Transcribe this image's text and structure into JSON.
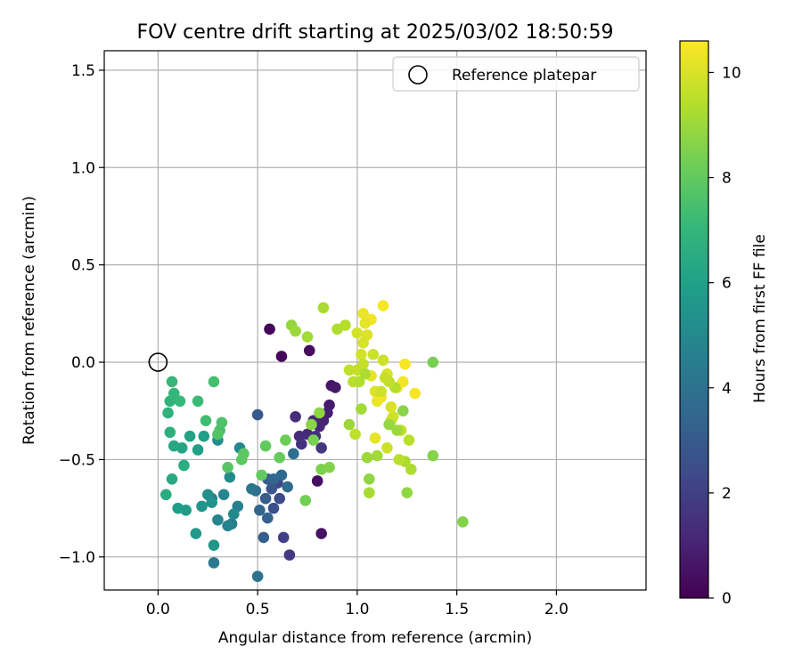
{
  "chart_data": {
    "type": "scatter",
    "title": "FOV centre drift starting at 2025/03/02 18:50:59",
    "xlabel": "Angular distance from reference (arcmin)",
    "ylabel": "Rotation from reference (arcmin)",
    "xlim": [
      -0.27,
      2.45
    ],
    "ylim": [
      -1.17,
      1.6
    ],
    "x_ticks": [
      0.0,
      0.5,
      1.0,
      1.5,
      2.0
    ],
    "x_tick_labels": [
      "0.0",
      "0.5",
      "1.0",
      "1.5",
      "2.0"
    ],
    "y_ticks": [
      -1.0,
      -0.5,
      0.0,
      0.5,
      1.0,
      1.5
    ],
    "y_tick_labels": [
      "−1.0",
      "−0.5",
      "0.0",
      "0.5",
      "1.0",
      "1.5"
    ],
    "grid": true,
    "legend": {
      "position": "top-right",
      "entries": [
        "Reference platepar"
      ]
    },
    "reference_point": {
      "x": 0.0,
      "y": 0.0
    },
    "colorbar": {
      "label": "Hours from first FF file",
      "colormap": "viridis",
      "range": [
        0,
        10.6
      ],
      "ticks": [
        0,
        2,
        4,
        6,
        8,
        10
      ],
      "tick_labels": [
        "0",
        "2",
        "4",
        "6",
        "8",
        "10"
      ]
    },
    "colormap_stops": [
      "#440154",
      "#482878",
      "#3e4a89",
      "#31688e",
      "#26828e",
      "#1f9e89",
      "#35b779",
      "#6ece58",
      "#b5de2b",
      "#fde725"
    ],
    "points": [
      [
        0.56,
        0.17,
        0.1
      ],
      [
        0.62,
        0.03,
        0.2
      ],
      [
        0.76,
        0.06,
        0.3
      ],
      [
        0.8,
        -0.61,
        0.4
      ],
      [
        0.82,
        -0.88,
        0.5
      ],
      [
        0.87,
        -0.12,
        0.6
      ],
      [
        0.89,
        -0.13,
        0.7
      ],
      [
        0.86,
        -0.22,
        0.8
      ],
      [
        0.85,
        -0.26,
        0.9
      ],
      [
        0.83,
        -0.3,
        1.0
      ],
      [
        0.81,
        -0.33,
        1.1
      ],
      [
        0.78,
        -0.3,
        1.2
      ],
      [
        0.75,
        -0.37,
        1.2
      ],
      [
        0.71,
        -0.38,
        1.3
      ],
      [
        0.69,
        -0.28,
        1.4
      ],
      [
        0.72,
        -0.42,
        1.5
      ],
      [
        0.79,
        -0.38,
        1.6
      ],
      [
        0.82,
        -0.44,
        1.7
      ],
      [
        0.66,
        -0.99,
        1.8
      ],
      [
        0.63,
        -0.9,
        2.0
      ],
      [
        0.6,
        -0.62,
        2.2
      ],
      [
        0.61,
        -0.7,
        2.4
      ],
      [
        0.58,
        -0.75,
        2.6
      ],
      [
        0.57,
        -0.65,
        2.8
      ],
      [
        0.55,
        -0.6,
        3.0
      ],
      [
        0.5,
        -0.27,
        3.0
      ],
      [
        0.54,
        -0.7,
        3.1
      ],
      [
        0.53,
        -0.9,
        3.2
      ],
      [
        0.55,
        -0.8,
        3.3
      ],
      [
        0.51,
        -0.76,
        3.4
      ],
      [
        0.58,
        -0.6,
        3.5
      ],
      [
        0.62,
        -0.58,
        3.6
      ],
      [
        0.65,
        -0.64,
        3.7
      ],
      [
        0.68,
        -0.47,
        3.8
      ],
      [
        0.49,
        -0.66,
        3.9
      ],
      [
        0.5,
        -1.1,
        4.0
      ],
      [
        0.47,
        -0.65,
        4.1
      ],
      [
        0.28,
        -1.03,
        4.3
      ],
      [
        0.27,
        -0.7,
        4.4
      ],
      [
        0.37,
        -0.83,
        4.5
      ],
      [
        0.4,
        -0.74,
        4.6
      ],
      [
        0.35,
        -0.84,
        4.7
      ],
      [
        0.3,
        -0.81,
        4.8
      ],
      [
        0.33,
        -0.68,
        4.9
      ],
      [
        0.38,
        -0.78,
        5.0
      ],
      [
        0.41,
        -0.44,
        5.0
      ],
      [
        0.36,
        -0.59,
        5.1
      ],
      [
        0.3,
        -0.4,
        5.2
      ],
      [
        0.25,
        -0.68,
        5.3
      ],
      [
        0.27,
        -0.72,
        5.4
      ],
      [
        0.22,
        -0.74,
        5.5
      ],
      [
        0.28,
        -0.94,
        5.6
      ],
      [
        0.19,
        -0.88,
        5.7
      ],
      [
        0.14,
        -0.76,
        5.8
      ],
      [
        0.1,
        -0.75,
        5.9
      ],
      [
        0.2,
        -0.45,
        6.0
      ],
      [
        0.23,
        -0.38,
        6.0
      ],
      [
        0.16,
        -0.38,
        6.1
      ],
      [
        0.12,
        -0.44,
        6.2
      ],
      [
        0.08,
        -0.43,
        6.3
      ],
      [
        0.07,
        -0.6,
        6.4
      ],
      [
        0.04,
        -0.68,
        6.5
      ],
      [
        0.13,
        -0.53,
        6.6
      ],
      [
        0.06,
        -0.36,
        6.7
      ],
      [
        0.05,
        -0.26,
        6.8
      ],
      [
        0.06,
        -0.2,
        6.9
      ],
      [
        0.07,
        -0.1,
        7.0
      ],
      [
        0.08,
        -0.16,
        7.0
      ],
      [
        0.11,
        -0.2,
        7.1
      ],
      [
        0.2,
        -0.2,
        7.2
      ],
      [
        0.24,
        -0.3,
        7.3
      ],
      [
        0.28,
        -0.1,
        7.4
      ],
      [
        0.31,
        -0.35,
        7.5
      ],
      [
        0.32,
        -0.31,
        7.6
      ],
      [
        0.3,
        -0.37,
        7.7
      ],
      [
        0.35,
        -0.54,
        7.8
      ],
      [
        0.42,
        -0.5,
        7.9
      ],
      [
        0.43,
        -0.47,
        7.9
      ],
      [
        0.52,
        -0.58,
        8.0
      ],
      [
        0.54,
        -0.43,
        8.0
      ],
      [
        0.61,
        -0.49,
        8.1
      ],
      [
        0.64,
        -0.4,
        8.2
      ],
      [
        0.74,
        -0.71,
        8.3
      ],
      [
        0.78,
        -0.4,
        8.4
      ],
      [
        0.82,
        -0.55,
        8.5
      ],
      [
        0.86,
        -0.54,
        8.6
      ],
      [
        0.77,
        -0.32,
        8.7
      ],
      [
        0.81,
        -0.26,
        8.8
      ],
      [
        0.67,
        0.19,
        8.9
      ],
      [
        0.69,
        0.16,
        9.0
      ],
      [
        0.75,
        0.13,
        9.1
      ],
      [
        0.83,
        0.28,
        9.2
      ],
      [
        0.9,
        0.17,
        9.3
      ],
      [
        0.94,
        0.19,
        9.4
      ],
      [
        1.53,
        -0.82,
        8.6
      ],
      [
        1.38,
        0.0,
        8.4
      ],
      [
        1.38,
        -0.48,
        8.6
      ],
      [
        1.25,
        -0.67,
        8.8
      ],
      [
        1.06,
        -0.6,
        8.8
      ],
      [
        1.05,
        -0.49,
        9.0
      ],
      [
        1.1,
        -0.48,
        9.1
      ],
      [
        1.06,
        -0.67,
        9.2
      ],
      [
        1.24,
        -0.51,
        9.3
      ],
      [
        1.27,
        -0.55,
        9.3
      ],
      [
        1.21,
        -0.5,
        9.5
      ],
      [
        1.26,
        -0.4,
        9.5
      ],
      [
        1.22,
        -0.35,
        9.6
      ],
      [
        1.17,
        -0.3,
        9.7
      ],
      [
        1.15,
        -0.44,
        9.8
      ],
      [
        1.23,
        -0.25,
        8.7
      ],
      [
        1.18,
        -0.28,
        9.8
      ],
      [
        1.17,
        -0.23,
        10.0
      ],
      [
        1.09,
        -0.39,
        10.2
      ],
      [
        1.1,
        -0.2,
        10.3
      ],
      [
        1.12,
        -0.18,
        10.4
      ],
      [
        1.09,
        -0.15,
        10.1
      ],
      [
        1.07,
        -0.07,
        10.2
      ],
      [
        1.15,
        -0.06,
        10.0
      ],
      [
        1.2,
        -0.13,
        10.3
      ],
      [
        1.23,
        -0.1,
        10.4
      ],
      [
        1.24,
        -0.01,
        10.5
      ],
      [
        1.29,
        -0.16,
        10.5
      ],
      [
        1.13,
        0.29,
        10.5
      ],
      [
        1.07,
        0.22,
        10.4
      ],
      [
        1.03,
        0.25,
        10.3
      ],
      [
        1.04,
        0.2,
        10.2
      ],
      [
        1.05,
        0.14,
        10.1
      ],
      [
        1.03,
        0.1,
        10.0
      ],
      [
        1.0,
        0.15,
        9.9
      ],
      [
        1.02,
        0.04,
        9.9
      ],
      [
        1.08,
        0.04,
        9.8
      ],
      [
        1.13,
        0.01,
        9.8
      ],
      [
        1.03,
        -0.01,
        9.7
      ],
      [
        1.0,
        -0.04,
        9.7
      ],
      [
        0.96,
        -0.04,
        9.6
      ],
      [
        0.98,
        -0.1,
        9.5
      ],
      [
        1.01,
        -0.1,
        9.4
      ],
      [
        1.04,
        -0.06,
        9.3
      ],
      [
        1.02,
        -0.24,
        9.1
      ],
      [
        0.96,
        -0.32,
        9.0
      ],
      [
        0.99,
        -0.37,
        9.6
      ],
      [
        1.16,
        -0.32,
        8.9
      ],
      [
        1.2,
        -0.35,
        9.0
      ],
      [
        1.19,
        -0.13,
        9.4
      ],
      [
        1.16,
        -0.1,
        9.6
      ],
      [
        1.14,
        -0.08,
        9.7
      ],
      [
        1.12,
        -0.15,
        9.8
      ]
    ]
  }
}
